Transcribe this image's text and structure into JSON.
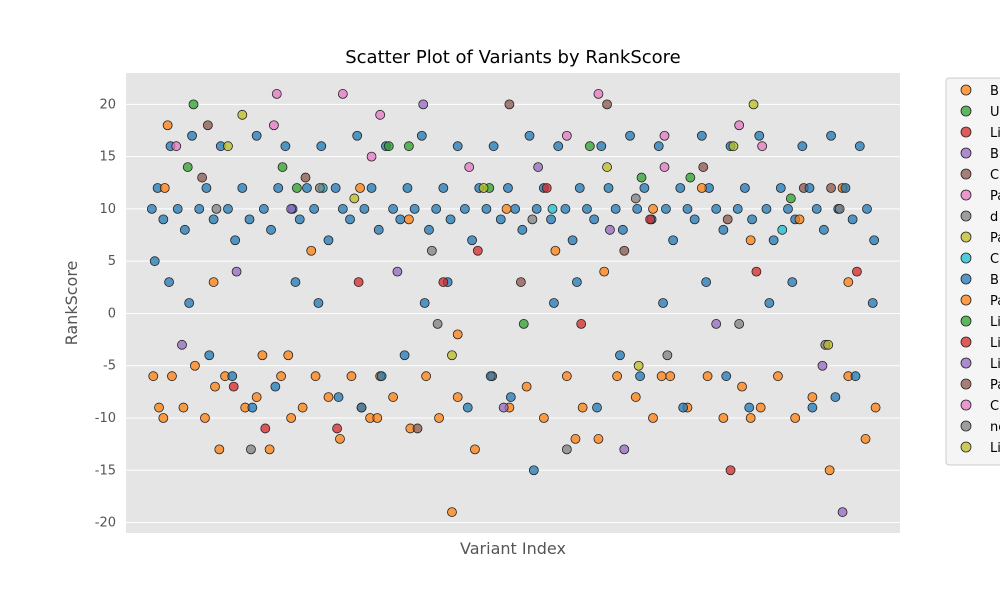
{
  "chart_data": {
    "type": "scatter",
    "title": "Scatter Plot of Variants by RankScore",
    "xlabel": "Variant Index",
    "ylabel": "RankScore",
    "ylim": [
      -21,
      23
    ],
    "yticks": [
      -20,
      -15,
      -10,
      -5,
      0,
      5,
      10,
      15,
      20
    ],
    "x_tick_labels_shown": false,
    "grid": true,
    "background": "#e5e5e5",
    "legend_position": "right",
    "legend_entries": [
      "B",
      "U",
      "Li",
      "B",
      "C",
      "Pa",
      "d",
      "Pa",
      "C",
      "B",
      "Pa",
      "Li",
      "Li",
      "Li",
      "Pa",
      "C",
      "ne",
      "Li"
    ],
    "series": [
      {
        "name": "Benign",
        "color": "#ff7f0e",
        "x": [
          2,
          6,
          9,
          15,
          23,
          31,
          38,
          45,
          52,
          66,
          74,
          83,
          91,
          98,
          106,
          115,
          124,
          132,
          140,
          147,
          153,
          160,
          169,
          181,
          192,
          201,
          214,
          226,
          238,
          250,
          262,
          274,
          290,
          301,
          312,
          325,
          338,
          350,
          362,
          374,
          388,
          399,
          412,
          425,
          437,
          449,
          461,
          473,
          486,
          498,
          505,
          12,
          48,
          96,
          158,
          210,
          296,
          356,
          418,
          482
        ],
        "y": [
          -6,
          -9,
          -10,
          -6,
          -9,
          -5,
          -10,
          -7,
          -6,
          -9,
          -8,
          -13,
          -6,
          -10,
          -9,
          -6,
          -8,
          -12,
          -6,
          -9,
          -10,
          -6,
          -8,
          -11,
          -6,
          -10,
          -8,
          -13,
          -6,
          -9,
          -7,
          -10,
          -6,
          -9,
          -12,
          -6,
          -8,
          -10,
          -6,
          -9,
          -6,
          -10,
          -7,
          -9,
          -6,
          -10,
          -8,
          -15,
          -6,
          -12,
          -9,
          18,
          -13,
          -4,
          -10,
          -19,
          -12,
          -6,
          -10,
          12
        ]
      },
      {
        "name": "Uncertain",
        "color": "#2ca02c",
        "x": [
          30,
          102,
          180,
          260,
          342
        ],
        "y": [
          20,
          12,
          16,
          -1,
          13
        ]
      },
      {
        "name": "Likely benign",
        "color": "#d62728",
        "x": [
          80,
          145,
          228,
          300,
          404
        ],
        "y": [
          -11,
          3,
          6,
          -1,
          -15
        ]
      },
      {
        "name": "Benign/Likely benign",
        "color": "#9467bd",
        "x": [
          60,
          190,
          270,
          330,
          482
        ],
        "y": [
          4,
          20,
          14,
          -13,
          -19
        ]
      },
      {
        "name": "Conflicting",
        "color": "#8c564b",
        "x": [
          40,
          250,
          318,
          385,
          455
        ],
        "y": [
          18,
          20,
          20,
          14,
          12
        ]
      },
      {
        "name": "Pathogenic",
        "color": "#e377c2",
        "x": [
          88,
          134,
          160,
          312,
          358,
          410
        ],
        "y": [
          21,
          21,
          19,
          21,
          17,
          18
        ]
      },
      {
        "name": "drug response",
        "color": "#7f7f7f",
        "x": [
          70,
          200,
          290,
          360,
          470
        ],
        "y": [
          -13,
          -1,
          -13,
          -4,
          -3
        ]
      },
      {
        "name": "Pathogenic/Likely pathogenic",
        "color": "#bcbd22",
        "x": [
          64,
          210,
          340,
          420
        ],
        "y": [
          19,
          -4,
          -5,
          20
        ]
      },
      {
        "name": "Conflicting interpretations",
        "color": "#17becf",
        "x": [
          120,
          280,
          440
        ],
        "y": [
          12,
          10,
          8
        ]
      },
      {
        "name": "Benign (other)",
        "color": "#1f77b4",
        "x": [
          1,
          5,
          9,
          14,
          19,
          24,
          29,
          34,
          39,
          44,
          49,
          54,
          59,
          64,
          69,
          74,
          79,
          84,
          89,
          94,
          99,
          104,
          109,
          114,
          119,
          124,
          129,
          134,
          139,
          144,
          149,
          154,
          159,
          164,
          169,
          174,
          179,
          184,
          189,
          194,
          199,
          204,
          209,
          214,
          219,
          224,
          229,
          234,
          239,
          244,
          249,
          254,
          259,
          264,
          269,
          274,
          279,
          284,
          289,
          294,
          299,
          304,
          309,
          314,
          319,
          324,
          329,
          334,
          339,
          344,
          349,
          354,
          359,
          364,
          369,
          374,
          379,
          384,
          389,
          394,
          399,
          404,
          409,
          414,
          419,
          424,
          429,
          434,
          439,
          444,
          449,
          454,
          459,
          464,
          469,
          474,
          479,
          484,
          489,
          494,
          499,
          504,
          3,
          13,
          27,
          41,
          57,
          71,
          87,
          101,
          117,
          131,
          147,
          161,
          177,
          191,
          207,
          221,
          237,
          251,
          267,
          281,
          297,
          311,
          327,
          341,
          357,
          371,
          387,
          401,
          417,
          431,
          447,
          461,
          477,
          491,
          503
        ],
        "y": [
          10,
          12,
          9,
          16,
          10,
          8,
          17,
          10,
          12,
          9,
          16,
          10,
          7,
          12,
          9,
          17,
          10,
          8,
          12,
          16,
          10,
          9,
          12,
          10,
          16,
          7,
          12,
          10,
          9,
          17,
          10,
          12,
          8,
          16,
          10,
          9,
          12,
          10,
          17,
          8,
          10,
          12,
          9,
          16,
          10,
          7,
          12,
          10,
          16,
          9,
          12,
          10,
          8,
          17,
          10,
          12,
          9,
          16,
          10,
          7,
          12,
          10,
          9,
          16,
          12,
          10,
          8,
          17,
          10,
          12,
          9,
          16,
          10,
          7,
          12,
          10,
          9,
          17,
          12,
          10,
          8,
          16,
          10,
          12,
          9,
          17,
          10,
          7,
          12,
          10,
          9,
          16,
          12,
          10,
          8,
          17,
          10,
          12,
          9,
          16,
          10,
          7,
          5,
          3,
          1,
          -4,
          -6,
          -9,
          -7,
          3,
          1,
          -8,
          -9,
          -6,
          -4,
          1,
          3,
          -9,
          -6,
          -8,
          -15,
          1,
          3,
          -9,
          -4,
          -6,
          1,
          -9,
          3,
          -6,
          -9,
          1,
          3,
          -9,
          -8,
          -6,
          1
        ]
      },
      {
        "name": "Pathogenic (other)",
        "color": "#ff7f0e",
        "x": [
          10,
          44,
          78,
          112,
          146,
          180,
          214,
          248,
          282,
          316,
          350,
          384,
          418,
          452,
          486
        ],
        "y": [
          12,
          3,
          -4,
          6,
          12,
          9,
          -2,
          10,
          6,
          4,
          10,
          12,
          7,
          9,
          3
        ]
      },
      {
        "name": "Likely pathogenic",
        "color": "#2ca02c",
        "x": [
          26,
          92,
          166,
          236,
          306,
          376,
          446
        ],
        "y": [
          14,
          14,
          16,
          12,
          16,
          13,
          11
        ]
      },
      {
        "name": "Likely benign (other)",
        "color": "#d62728",
        "x": [
          58,
          130,
          204,
          276,
          348,
          422,
          492
        ],
        "y": [
          -7,
          -11,
          3,
          12,
          9,
          4,
          4
        ]
      },
      {
        "name": "Likely pathogenic (other)",
        "color": "#9467bd",
        "x": [
          22,
          98,
          172,
          246,
          320,
          394,
          468
        ],
        "y": [
          -3,
          10,
          4,
          -9,
          8,
          -1,
          -5
        ]
      },
      {
        "name": "Pathogenic/other",
        "color": "#8c564b",
        "x": [
          36,
          108,
          186,
          258,
          330,
          402,
          474
        ],
        "y": [
          13,
          13,
          -11,
          3,
          6,
          9,
          12
        ]
      },
      {
        "name": "Conflicting (other)",
        "color": "#e377c2",
        "x": [
          18,
          86,
          154,
          222,
          290,
          358,
          426
        ],
        "y": [
          16,
          18,
          15,
          14,
          17,
          14,
          16
        ]
      },
      {
        "name": "not provided",
        "color": "#7f7f7f",
        "x": [
          46,
          118,
          196,
          266,
          338,
          410,
          480
        ],
        "y": [
          10,
          12,
          6,
          9,
          11,
          -1,
          10
        ]
      },
      {
        "name": "Likely risk allele",
        "color": "#bcbd22",
        "x": [
          54,
          142,
          232,
          318,
          406,
          472
        ],
        "y": [
          16,
          11,
          12,
          14,
          16,
          -3
        ]
      }
    ],
    "xlim": [
      -17,
      522
    ]
  }
}
